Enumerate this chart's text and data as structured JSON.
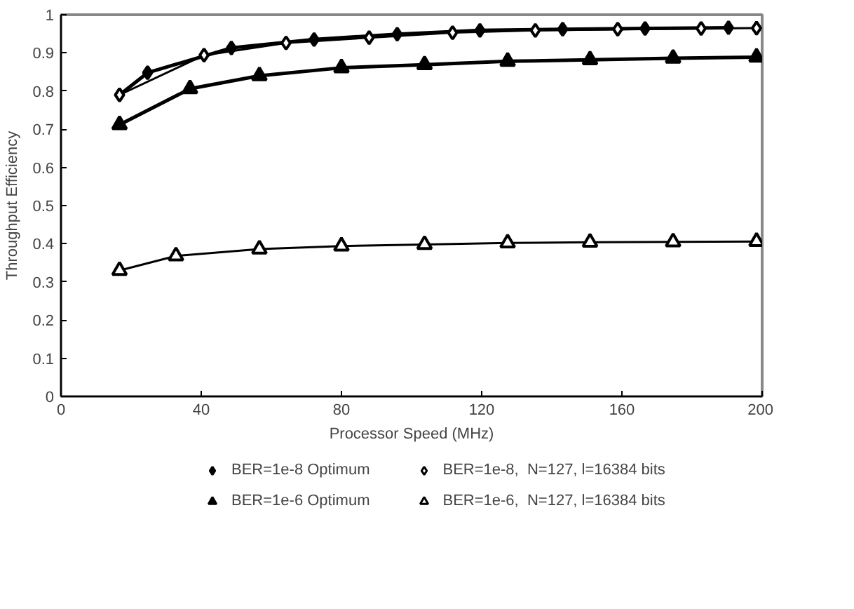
{
  "chart_data": {
    "type": "line",
    "xlabel": "Processor Speed (MHz)",
    "ylabel": "Throughput Efficiency",
    "xlim": [
      0,
      200
    ],
    "xticks": [
      0,
      40,
      80,
      120,
      160,
      200
    ],
    "ylim": [
      0,
      1
    ],
    "yticks": [
      0,
      0.1,
      0.2,
      0.3,
      0.4,
      0.5,
      0.6,
      0.7,
      0.8,
      0.9,
      1
    ],
    "grid": false,
    "legend": "bottom",
    "line_style": "solid",
    "series": [
      {
        "name": "BER=1e-8 Optimum",
        "color": "#000000",
        "marker": "diamond",
        "x": [
          16.7,
          24.7,
          48.6,
          72.2,
          95.9,
          119.5,
          143.1,
          166.6,
          190.4
        ],
        "values": [
          0.79,
          0.848,
          0.913,
          0.935,
          0.949,
          0.959,
          0.962,
          0.964,
          0.966
        ]
      },
      {
        "name": "BER=1e-8,  N=127, l=16384 bits",
        "color": "#000000",
        "marker": "diamond",
        "x": [
          16.7,
          40.8,
          64.2,
          87.9,
          111.7,
          135.3,
          158.8,
          182.6,
          198.4
        ],
        "values": [
          0.79,
          0.894,
          0.926,
          0.94,
          0.953,
          0.959,
          0.962,
          0.964,
          0.965
        ]
      },
      {
        "name": "BER=1e-6 Optimum",
        "color": "#000000",
        "marker": "triangle",
        "x": [
          16.7,
          36.8,
          56.6,
          80,
          103.7,
          127.4,
          150.9,
          174.6,
          198.4
        ],
        "values": [
          0.712,
          0.806,
          0.84,
          0.861,
          0.869,
          0.878,
          0.882,
          0.886,
          0.889
        ]
      },
      {
        "name": "BER=1e-6,  N=127, l=16384 bits",
        "color": "#000000",
        "marker": "triangle",
        "x": [
          16.7,
          32.8,
          56.6,
          80,
          103.7,
          127.4,
          150.9,
          174.6,
          198.4
        ],
        "values": [
          0.33,
          0.368,
          0.386,
          0.394,
          0.398,
          0.402,
          0.404,
          0.405,
          0.406
        ]
      }
    ]
  }
}
